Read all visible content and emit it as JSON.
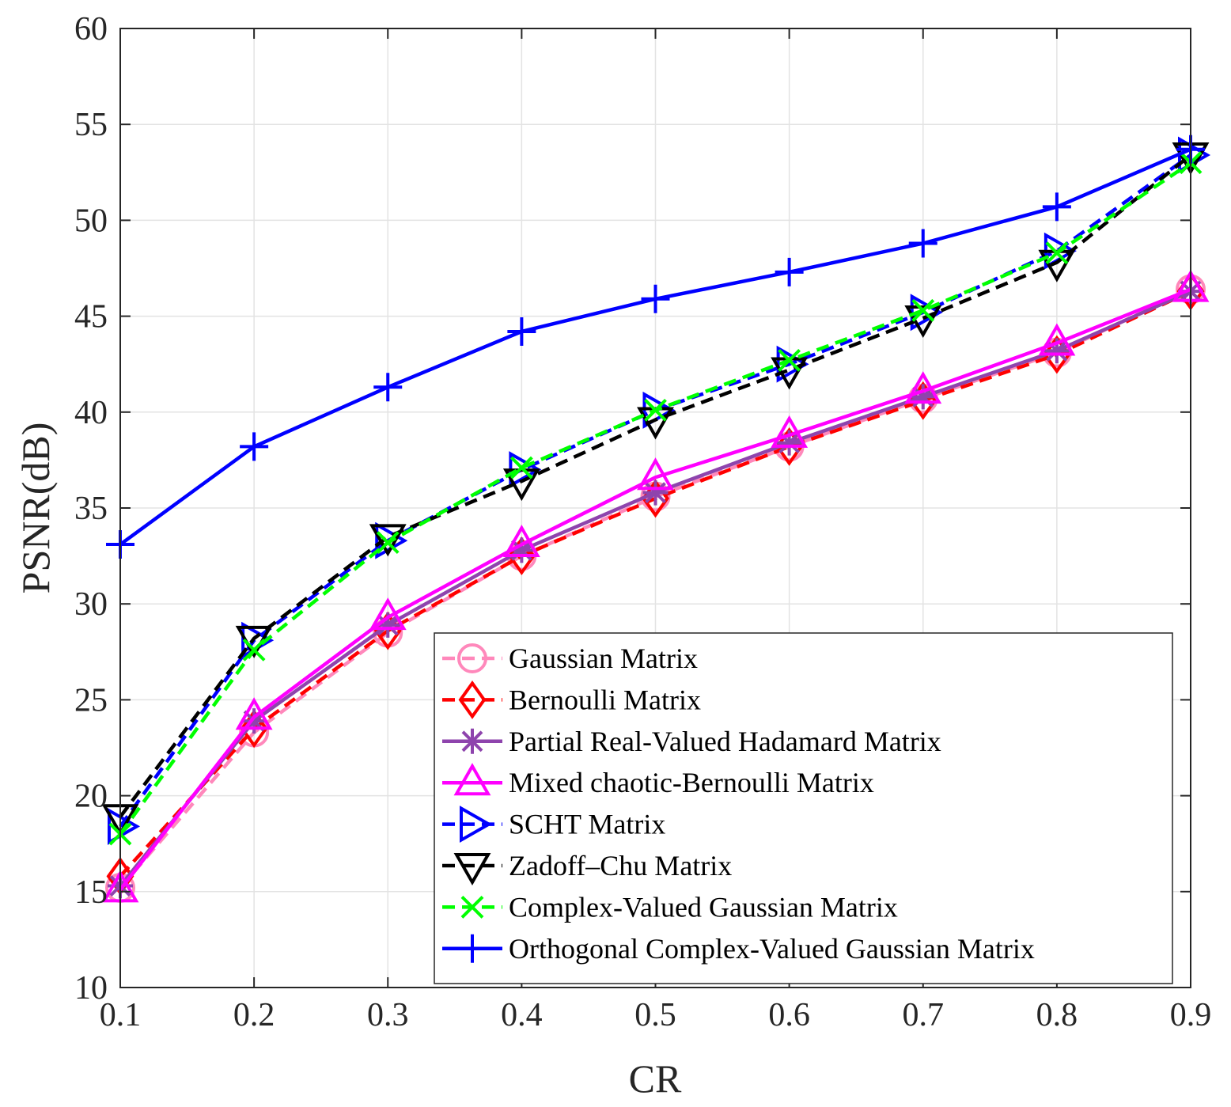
{
  "chart_data": {
    "type": "line",
    "title": "",
    "xlabel": "CR",
    "ylabel": "PSNR(dB)",
    "xlim": [
      0.1,
      0.9
    ],
    "ylim": [
      10,
      60
    ],
    "grid": true,
    "legend_position": "bottom-right",
    "x": [
      0.1,
      0.2,
      0.3,
      0.4,
      0.5,
      0.6,
      0.7,
      0.8,
      0.9
    ],
    "x_tick_labels": [
      "0.1",
      "0.2",
      "0.3",
      "0.4",
      "0.5",
      "0.6",
      "0.7",
      "0.8",
      "0.9"
    ],
    "y_tick_labels": [
      "10",
      "15",
      "20",
      "25",
      "30",
      "35",
      "40",
      "45",
      "50",
      "55",
      "60"
    ],
    "series": [
      {
        "name": "Gaussian Matrix",
        "color": "#ff88bb",
        "dash": "dashed",
        "marker": "circle",
        "values": [
          15.2,
          23.3,
          28.5,
          32.5,
          35.6,
          38.2,
          40.7,
          43.1,
          46.4
        ]
      },
      {
        "name": "Bernoulli Matrix",
        "color": "#ff0000",
        "dash": "dashed",
        "marker": "diamond",
        "values": [
          15.8,
          23.5,
          28.6,
          32.5,
          35.5,
          38.2,
          40.6,
          43.0,
          46.3
        ]
      },
      {
        "name": "Partial Real-Valued Hadamard Matrix",
        "color": "#8e44ad",
        "dash": "solid",
        "marker": "asterisk",
        "values": [
          15.3,
          23.9,
          28.9,
          32.8,
          35.8,
          38.4,
          40.8,
          43.2,
          46.3
        ]
      },
      {
        "name": "Mixed chaotic-Bernoulli Matrix",
        "color": "#ff00ff",
        "dash": "solid",
        "marker": "triangle-up",
        "values": [
          15.1,
          24.1,
          29.3,
          33.1,
          36.6,
          38.8,
          41.1,
          43.6,
          46.4
        ]
      },
      {
        "name": "SCHT Matrix",
        "color": "#0000ff",
        "dash": "dashed",
        "marker": "triangle-right",
        "values": [
          18.4,
          28.1,
          33.3,
          37.0,
          40.1,
          42.5,
          45.2,
          48.4,
          53.4
        ]
      },
      {
        "name": "Zadoff–Chu Matrix",
        "color": "#000000",
        "dash": "dashed",
        "marker": "triangle-down",
        "values": [
          18.9,
          28.2,
          33.5,
          36.4,
          39.6,
          42.2,
          44.9,
          47.8,
          53.4
        ]
      },
      {
        "name": "Complex-Valued Gaussian Matrix",
        "color": "#00ff00",
        "dash": "dashed",
        "marker": "x",
        "values": [
          18.0,
          27.6,
          33.2,
          37.1,
          40.1,
          42.7,
          45.3,
          48.3,
          53.0
        ]
      },
      {
        "name": "Orthogonal Complex-Valued Gaussian Matrix",
        "color": "#0000ff",
        "dash": "solid",
        "marker": "plus",
        "values": [
          33.1,
          38.2,
          41.3,
          44.2,
          45.9,
          47.3,
          48.8,
          50.7,
          53.7
        ]
      }
    ]
  }
}
